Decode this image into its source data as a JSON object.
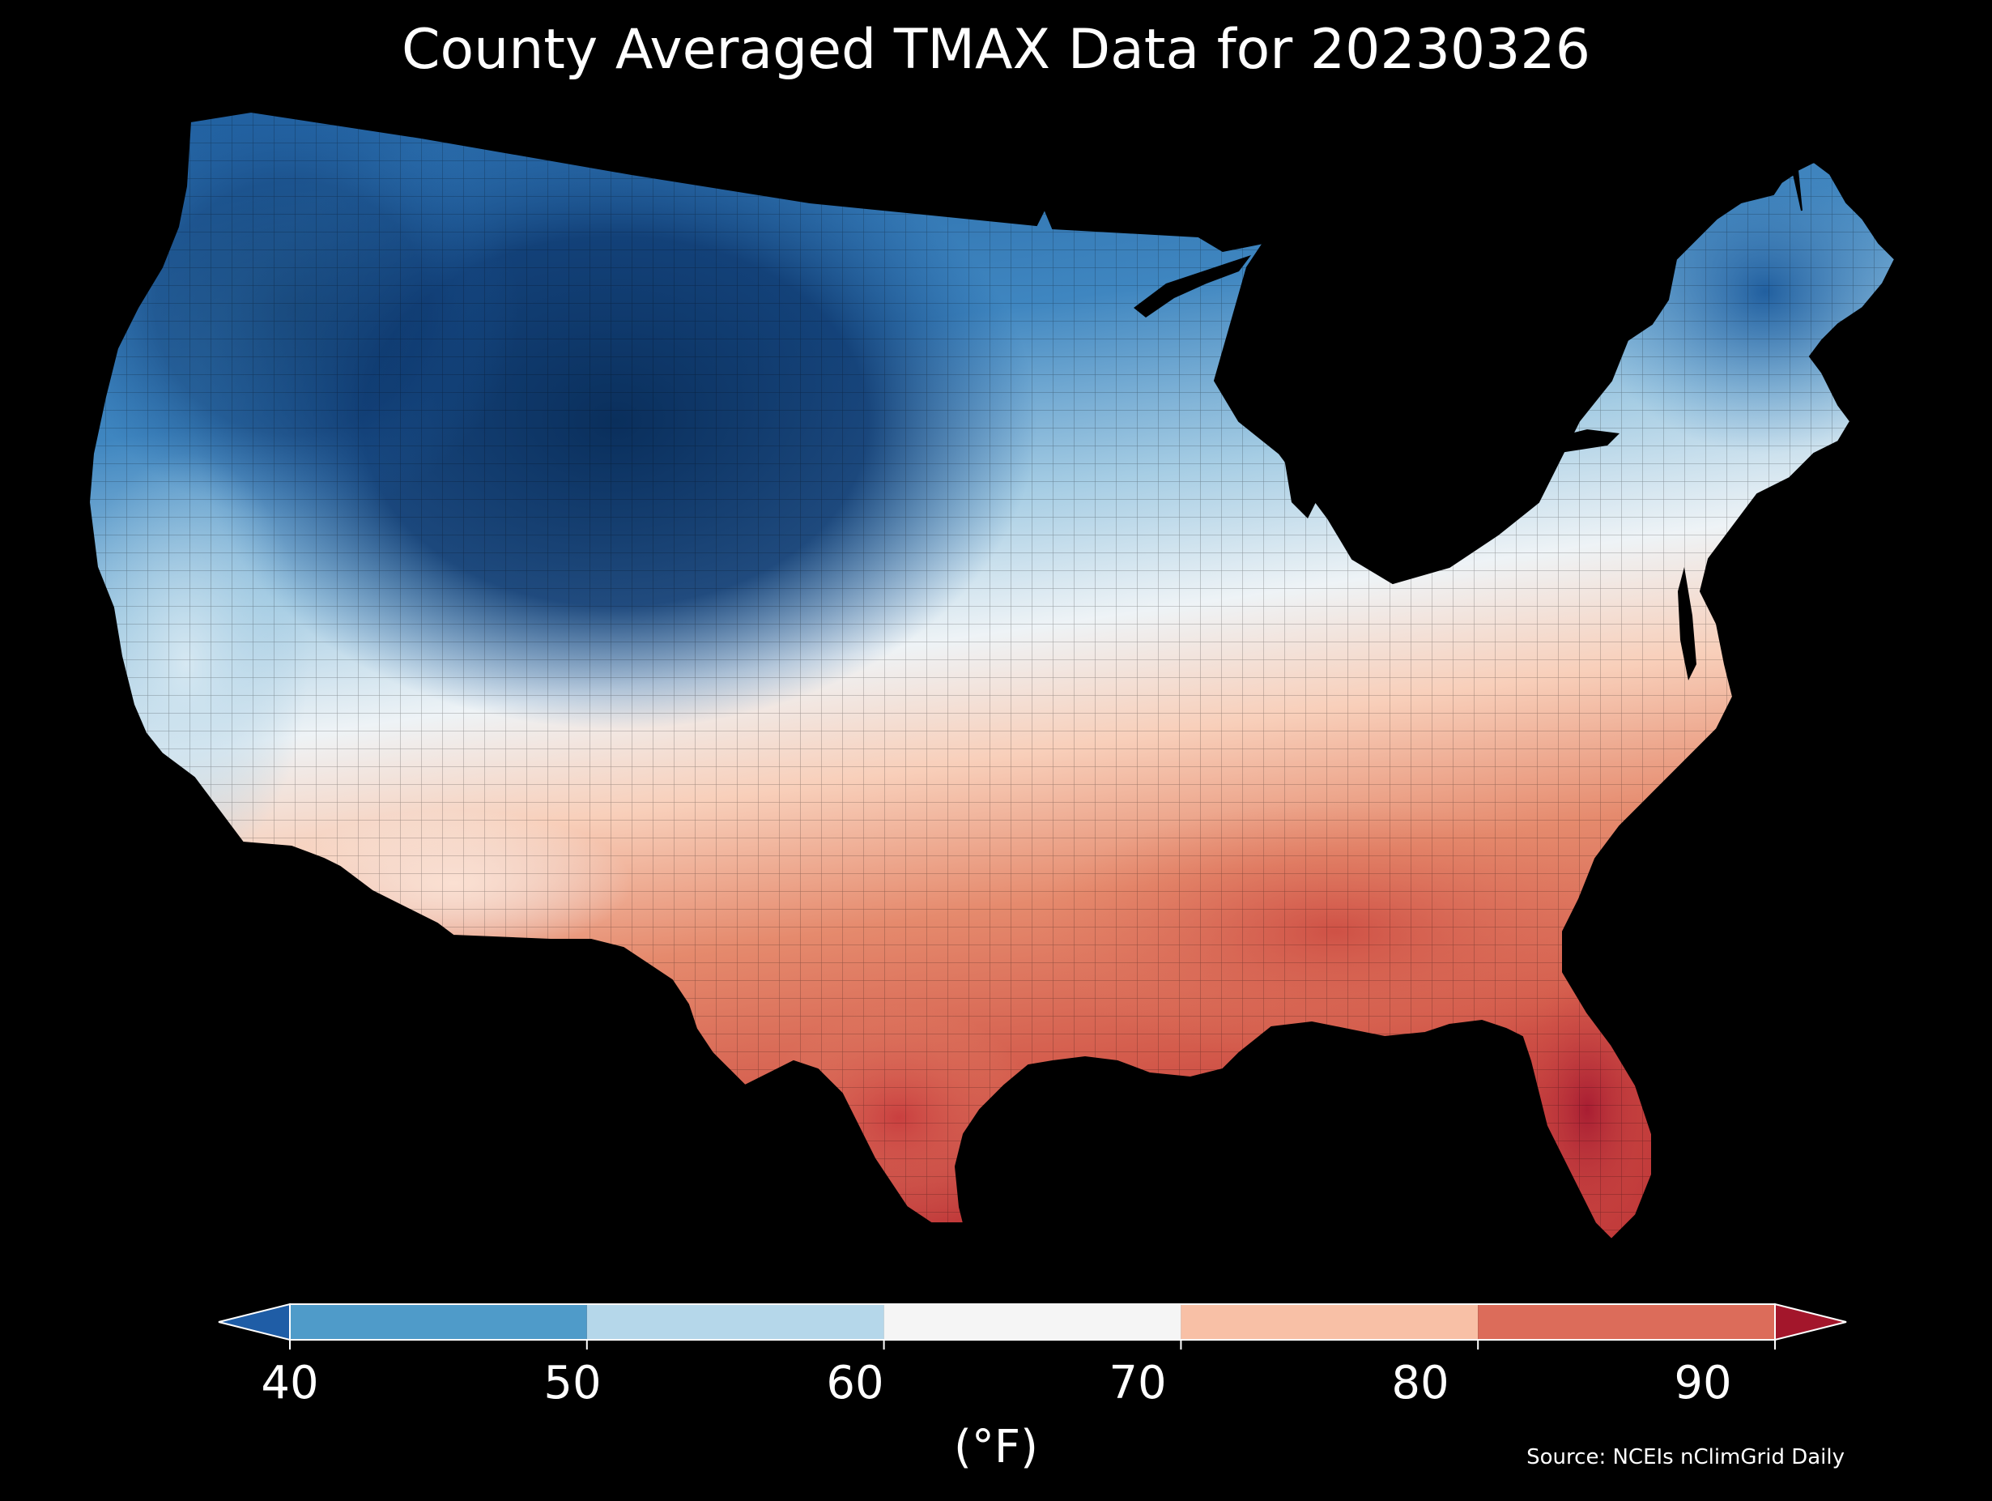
{
  "title": "County Averaged TMAX Data for 20230326",
  "colorbar": {
    "ticks": [
      "40",
      "50",
      "60",
      "70",
      "80",
      "90"
    ],
    "unit": "(°F)",
    "under_color": "#1f5da6",
    "over_color": "#a3162b",
    "bins": [
      {
        "min": 40,
        "max": 50,
        "color": "#4f9bc9"
      },
      {
        "min": 50,
        "max": 60,
        "color": "#b5d7ea"
      },
      {
        "min": 60,
        "max": 70,
        "color": "#f5f5f5"
      },
      {
        "min": 70,
        "max": 80,
        "color": "#f8c0a6"
      },
      {
        "min": 80,
        "max": 90,
        "color": "#dc6c5a"
      }
    ]
  },
  "source": "Source: NCEIs nClimGrid Daily",
  "map": {
    "region": "contiguous United States",
    "mapped_quantity": "county averaged daily maximum temperature",
    "regional_colors": {
      "northern_rockies_plains": "#0b3566",
      "pacific_northwest": "#2c6fb3",
      "great_basin": "#1d5a9c",
      "california_coast": "#b5d7ea",
      "desert_southwest": "#fbe2d6",
      "midwest": "#d4e6f1",
      "great_lakes": "#6fa9d3",
      "new_england": "#2f73b4",
      "mid_atlantic": "#f5f5f5",
      "southeast": "#e38468",
      "gulf_coast": "#d4574b",
      "florida": "#b8283a",
      "south_texas": "#cf4b45"
    }
  }
}
